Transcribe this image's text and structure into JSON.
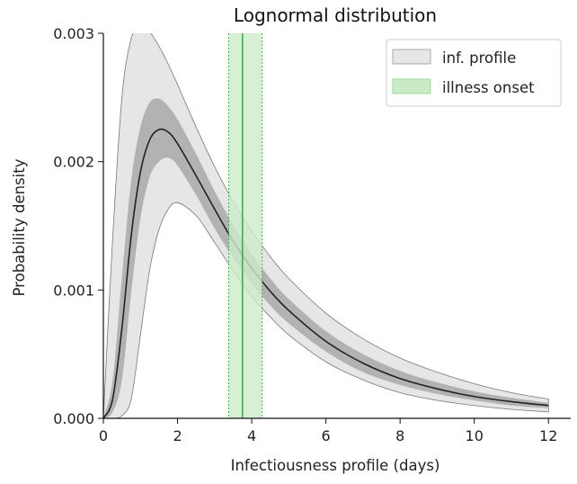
{
  "chart_data": {
    "type": "area",
    "title": "Lognormal distribution",
    "xlabel": "Infectiousness profile (days)",
    "ylabel": "Probability density",
    "xlim": [
      0,
      12.6
    ],
    "ylim": [
      0,
      0.003
    ],
    "xticks": [
      0,
      2,
      4,
      6,
      8,
      10,
      12
    ],
    "xtick_labels": [
      "0",
      "2",
      "4",
      "6",
      "8",
      "10",
      "12"
    ],
    "yticks": [
      0,
      0.001,
      0.002,
      0.003
    ],
    "ytick_labels": [
      "0.000",
      "0.001",
      "0.002",
      "0.003"
    ],
    "legend": {
      "position": "top-right",
      "entries": [
        {
          "label": "inf. profile",
          "color": "#e6e6e6"
        },
        {
          "label": "illness onset",
          "color": "#c9ebc6"
        }
      ]
    },
    "colors": {
      "outer_band": "#e6e6e6",
      "inner_band": "#a8a8a8",
      "median_line": "#222222",
      "onset_fill": "#cdeccb",
      "onset_line": "#3cb043"
    },
    "x": [
      0,
      0.25,
      0.5,
      0.75,
      1,
      1.25,
      1.5,
      1.75,
      2,
      2.5,
      3,
      3.5,
      4,
      4.5,
      5,
      6,
      7,
      8,
      9,
      10,
      11,
      12
    ],
    "series": [
      {
        "role": "outer_upper",
        "values": [
          0,
          0.0014,
          0.0025,
          0.00296,
          0.00306,
          0.00301,
          0.0029,
          0.00276,
          0.0026,
          0.00227,
          0.00196,
          0.00169,
          0.00146,
          0.00126,
          0.00109,
          0.00082,
          0.00062,
          0.00047,
          0.00036,
          0.00027,
          0.0002,
          0.00015
        ]
      },
      {
        "role": "inner_upper",
        "values": [
          0,
          0.0003,
          0.0011,
          0.00185,
          0.00227,
          0.00246,
          0.00249,
          0.00243,
          0.00233,
          0.00206,
          0.00177,
          0.00151,
          0.00128,
          0.00109,
          0.00093,
          0.00068,
          0.0005,
          0.00037,
          0.00028,
          0.00021,
          0.00016,
          0.00012
        ]
      },
      {
        "role": "median",
        "values": [
          0,
          0.00015,
          0.0007,
          0.00142,
          0.00192,
          0.00217,
          0.00225,
          0.00223,
          0.00214,
          0.00189,
          0.00163,
          0.00138,
          0.00117,
          0.00099,
          0.00084,
          0.0006,
          0.00043,
          0.00031,
          0.00023,
          0.00017,
          0.00013,
          0.0001
        ]
      },
      {
        "role": "inner_lower",
        "values": [
          0,
          5e-05,
          0.0003,
          0.00098,
          0.00156,
          0.00188,
          0.002,
          0.00203,
          0.00197,
          0.00174,
          0.00148,
          0.00125,
          0.00105,
          0.00088,
          0.00074,
          0.00052,
          0.00036,
          0.00026,
          0.00019,
          0.00014,
          0.0001,
          8e-05
        ]
      },
      {
        "role": "outer_lower",
        "values": [
          0,
          0,
          2e-05,
          0.00015,
          0.00065,
          0.00116,
          0.00147,
          0.00163,
          0.00168,
          0.00158,
          0.00137,
          0.00115,
          0.00095,
          0.00079,
          0.00065,
          0.00044,
          0.0003,
          0.0002,
          0.00014,
          0.0001,
          7e-05,
          5e-05
        ]
      }
    ],
    "illness_onset": {
      "x": 3.75,
      "lower": 3.38,
      "upper": 4.28
    }
  }
}
